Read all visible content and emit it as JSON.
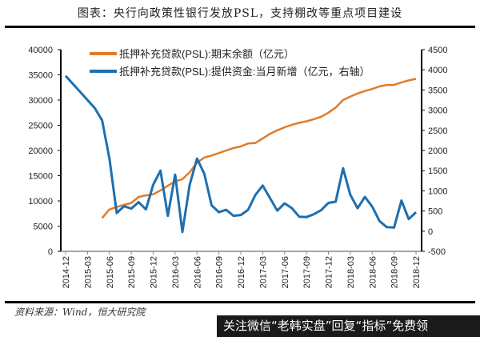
{
  "title": "图表：央行向政策性银行发放PSL，支持棚改等重点项目建设",
  "source": "资料来源：Wind，恒大研究院",
  "watermark_banner": "关注微信“老韩实盘”回复“指标”免费领",
  "colors": {
    "orange": "#E07B28",
    "blue": "#1F6FAE"
  },
  "chart_data": {
    "type": "line",
    "title": "",
    "xlabel": "",
    "ylabel": "",
    "y_left": {
      "range": [
        0,
        40000
      ],
      "ticks": [
        0,
        5000,
        10000,
        15000,
        20000,
        25000,
        30000,
        35000,
        40000
      ]
    },
    "y_right": {
      "range": [
        -500,
        4500
      ],
      "ticks": [
        -500,
        0,
        500,
        1000,
        1500,
        2000,
        2500,
        3000,
        3500,
        4000,
        4500
      ]
    },
    "x_tick_labels": [
      "2014-12",
      "2015-03",
      "2015-06",
      "2015-09",
      "2015-12",
      "2016-03",
      "2016-06",
      "2016-09",
      "2016-12",
      "2017-03",
      "2017-06",
      "2017-09",
      "2017-12",
      "2018-03",
      "2018-06",
      "2018-09",
      "2018-12"
    ],
    "x": [
      "2014-12",
      "2015-01",
      "2015-02",
      "2015-03",
      "2015-04",
      "2015-05",
      "2015-06",
      "2015-07",
      "2015-08",
      "2015-09",
      "2015-10",
      "2015-11",
      "2015-12",
      "2016-01",
      "2016-02",
      "2016-03",
      "2016-04",
      "2016-05",
      "2016-06",
      "2016-07",
      "2016-08",
      "2016-09",
      "2016-10",
      "2016-11",
      "2016-12",
      "2017-01",
      "2017-02",
      "2017-03",
      "2017-04",
      "2017-05",
      "2017-06",
      "2017-07",
      "2017-08",
      "2017-09",
      "2017-10",
      "2017-11",
      "2017-12",
      "2018-01",
      "2018-02",
      "2018-03",
      "2018-04",
      "2018-05",
      "2018-06",
      "2018-07",
      "2018-08",
      "2018-09",
      "2018-10",
      "2018-11",
      "2018-12"
    ],
    "grid": false,
    "legend_position": "top-left",
    "series": [
      {
        "name": "抵押补充贷款(PSL):期末余额（亿元）",
        "axis": "left",
        "color": "#E07B28",
        "values": [
          null,
          null,
          null,
          null,
          null,
          6600,
          8300,
          8800,
          9200,
          9600,
          10800,
          11100,
          11300,
          12100,
          13000,
          13900,
          14300,
          15700,
          17600,
          18600,
          19000,
          19500,
          20000,
          20500,
          20800,
          21400,
          21500,
          22400,
          23300,
          24000,
          24600,
          25100,
          25500,
          25800,
          26200,
          26700,
          27500,
          28500,
          30000,
          30700,
          31300,
          31800,
          32200,
          32700,
          33000,
          33000,
          33500,
          33900,
          34200
        ]
      },
      {
        "name": "抵押补充贷款(PSL):提供资金:当月新增（亿元，右轴）",
        "axis": "right",
        "color": "#1F6FAE",
        "values": [
          3850,
          3650,
          3450,
          3250,
          3050,
          2750,
          1800,
          450,
          620,
          560,
          720,
          540,
          1150,
          1500,
          380,
          1400,
          -20,
          1150,
          1800,
          1420,
          640,
          470,
          530,
          380,
          400,
          530,
          900,
          1130,
          820,
          510,
          690,
          570,
          360,
          350,
          420,
          520,
          700,
          730,
          1560,
          900,
          570,
          850,
          610,
          250,
          100,
          90,
          760,
          300,
          470
        ]
      }
    ]
  }
}
